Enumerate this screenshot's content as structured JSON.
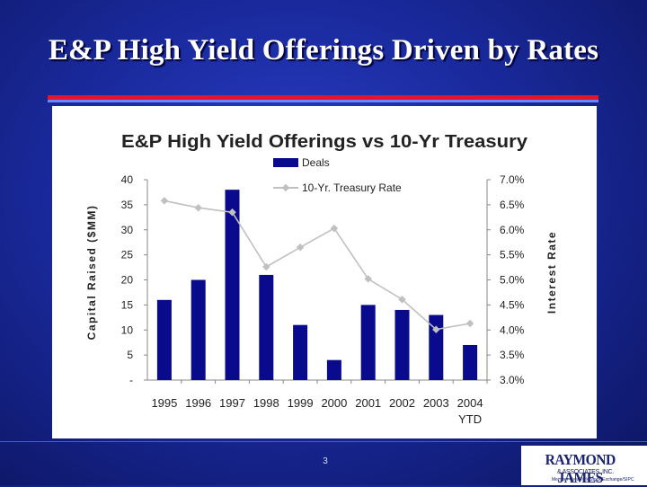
{
  "slide": {
    "title": "E&P High Yield Offerings Driven by Rates",
    "page_number": "3",
    "logo_name": "RAYMOND JAMES",
    "logo_sub": "& ASSOCIATES, INC.",
    "logo_tag": "Member New York Stock Exchange/SIPC"
  },
  "colors": {
    "background": "#1a2a9e",
    "bar": "#0a0a8c",
    "line": "#c0c0c0",
    "accent_red": "#e0162b"
  },
  "chart_data": {
    "type": "bar",
    "title": "E&P High Yield Offerings vs 10-Yr Treasury",
    "categories": [
      "1995",
      "1996",
      "1997",
      "1998",
      "1999",
      "2000",
      "2001",
      "2002",
      "2003",
      "2004 YTD"
    ],
    "series": [
      {
        "name": "Deals",
        "type": "bar",
        "axis": "left",
        "values": [
          16,
          20,
          38,
          21,
          11,
          4,
          15,
          14,
          13,
          7
        ]
      },
      {
        "name": "10-Yr. Treasury Rate",
        "type": "line",
        "axis": "right",
        "values": [
          6.58,
          6.44,
          6.35,
          5.26,
          5.65,
          6.03,
          5.02,
          4.61,
          4.01,
          4.13
        ]
      }
    ],
    "ylabel": "Capital Raised ($MM)",
    "y2label": "Interest Rate",
    "ylim": [
      0,
      40
    ],
    "y2lim": [
      3.0,
      7.0
    ],
    "yticks": [
      "-",
      "5",
      "10",
      "15",
      "20",
      "25",
      "30",
      "35",
      "40"
    ],
    "y2ticks": [
      "3.0%",
      "3.5%",
      "4.0%",
      "4.5%",
      "5.0%",
      "5.5%",
      "6.0%",
      "6.5%",
      "7.0%"
    ],
    "xtick_lines": [
      [
        "1995"
      ],
      [
        "1996"
      ],
      [
        "1997"
      ],
      [
        "1998"
      ],
      [
        "1999"
      ],
      [
        "2000"
      ],
      [
        "2001"
      ],
      [
        "2002"
      ],
      [
        "2003"
      ],
      [
        "2004",
        "YTD"
      ]
    ],
    "legend": "top-center",
    "grid": false
  }
}
